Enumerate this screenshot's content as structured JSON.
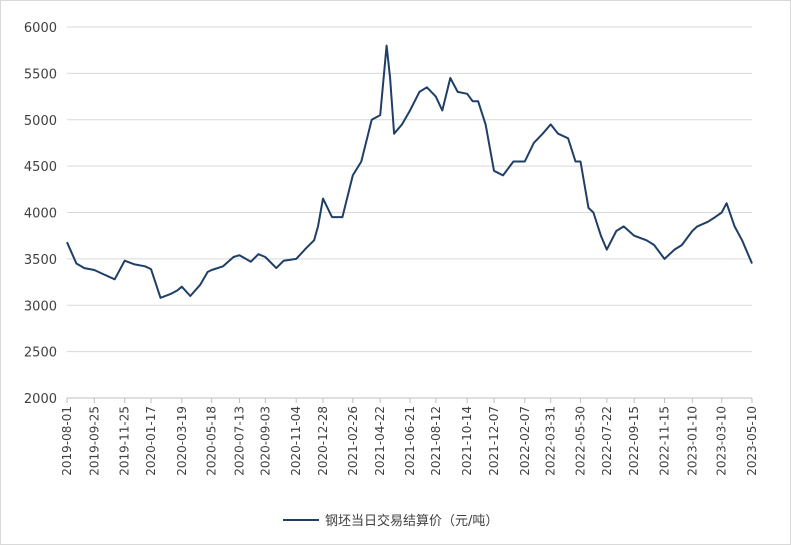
{
  "chart_data": {
    "type": "line",
    "title": "",
    "xlabel": "",
    "ylabel": "",
    "ylim": [
      2000,
      6000
    ],
    "yticks": [
      2000,
      2500,
      3000,
      3500,
      4000,
      4500,
      5000,
      5500,
      6000
    ],
    "xticks": [
      "2019-08-01",
      "2019-09-25",
      "2019-11-25",
      "2020-01-17",
      "2020-03-19",
      "2020-05-18",
      "2020-07-13",
      "2020-09-03",
      "2020-11-04",
      "2020-12-28",
      "2021-02-26",
      "2021-04-22",
      "2021-06-21",
      "2021-08-12",
      "2021-10-14",
      "2021-12-07",
      "2022-02-07",
      "2022-03-31",
      "2022-05-30",
      "2022-07-22",
      "2022-09-15",
      "2022-11-15",
      "2023-01-10",
      "2023-03-10",
      "2023-05-10"
    ],
    "grid": true,
    "legend_position": "bottom",
    "colors": {
      "line": "#1f3f66",
      "grid": "#d9d9d9",
      "axis": "#bfbfbf"
    },
    "series": [
      {
        "name": "钢坯当日交易结算价（元/吨）",
        "x": [
          "2019-08-01",
          "2019-08-20",
          "2019-09-05",
          "2019-09-25",
          "2019-10-15",
          "2019-11-05",
          "2019-11-25",
          "2019-12-15",
          "2020-01-05",
          "2020-01-17",
          "2020-02-05",
          "2020-02-25",
          "2020-03-10",
          "2020-03-19",
          "2020-04-05",
          "2020-04-25",
          "2020-05-10",
          "2020-05-18",
          "2020-06-10",
          "2020-07-01",
          "2020-07-13",
          "2020-08-05",
          "2020-08-20",
          "2020-09-03",
          "2020-09-25",
          "2020-10-10",
          "2020-11-04",
          "2020-11-25",
          "2020-12-10",
          "2020-12-18",
          "2020-12-28",
          "2021-01-15",
          "2021-02-05",
          "2021-02-26",
          "2021-03-15",
          "2021-04-05",
          "2021-04-22",
          "2021-05-05",
          "2021-05-12",
          "2021-05-20",
          "2021-06-05",
          "2021-06-21",
          "2021-07-10",
          "2021-07-25",
          "2021-08-12",
          "2021-08-25",
          "2021-09-10",
          "2021-09-25",
          "2021-10-14",
          "2021-10-25",
          "2021-11-05",
          "2021-11-20",
          "2021-12-07",
          "2021-12-25",
          "2022-01-15",
          "2022-02-07",
          "2022-02-25",
          "2022-03-15",
          "2022-03-31",
          "2022-04-15",
          "2022-05-05",
          "2022-05-20",
          "2022-05-30",
          "2022-06-15",
          "2022-06-25",
          "2022-07-10",
          "2022-07-22",
          "2022-08-10",
          "2022-08-25",
          "2022-09-15",
          "2022-10-10",
          "2022-10-25",
          "2022-11-15",
          "2022-12-05",
          "2022-12-20",
          "2023-01-10",
          "2023-01-20",
          "2023-02-10",
          "2023-02-25",
          "2023-03-10",
          "2023-03-20",
          "2023-04-05",
          "2023-04-20",
          "2023-05-10"
        ],
        "values": [
          3680,
          3450,
          3400,
          3380,
          3330,
          3280,
          3480,
          3440,
          3420,
          3390,
          3080,
          3120,
          3160,
          3200,
          3100,
          3220,
          3360,
          3380,
          3420,
          3520,
          3540,
          3470,
          3550,
          3520,
          3400,
          3480,
          3500,
          3620,
          3700,
          3850,
          4150,
          3950,
          3950,
          4400,
          4550,
          5000,
          5050,
          5800,
          5450,
          4850,
          4950,
          5100,
          5300,
          5350,
          5250,
          5100,
          5450,
          5300,
          5280,
          5200,
          5200,
          4950,
          4450,
          4400,
          4550,
          4550,
          4750,
          4850,
          4950,
          4850,
          4800,
          4550,
          4550,
          4050,
          4000,
          3750,
          3600,
          3800,
          3850,
          3750,
          3700,
          3650,
          3500,
          3600,
          3650,
          3800,
          3850,
          3900,
          3950,
          4000,
          4100,
          3850,
          3700,
          3450
        ]
      }
    ]
  }
}
